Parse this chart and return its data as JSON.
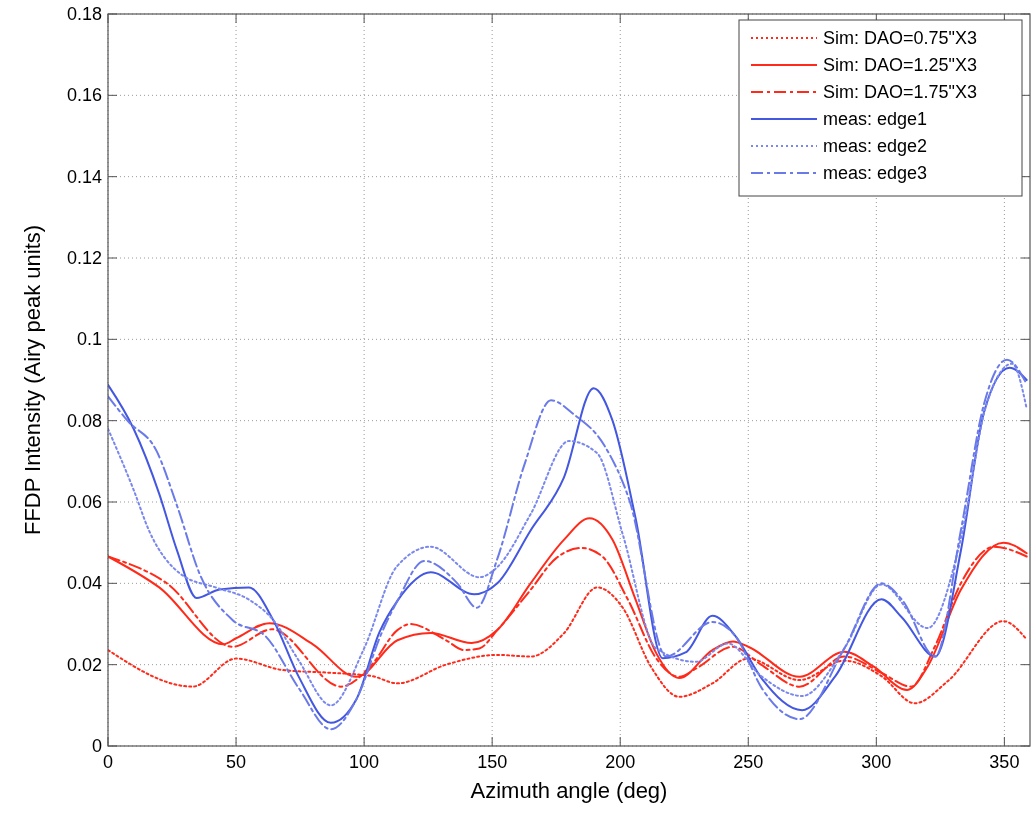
{
  "chart_data": {
    "type": "line",
    "xlabel": "Azimuth angle (deg)",
    "ylabel": "FFDP Intensity (Airy peak units)",
    "xlim": [
      0,
      360
    ],
    "xticks": [
      0,
      50,
      100,
      150,
      200,
      250,
      300,
      350
    ],
    "ylim": [
      0,
      0.18
    ],
    "yticks": [
      0,
      0.02,
      0.04,
      0.06,
      0.08,
      0.1,
      0.12,
      0.14,
      0.16,
      0.18
    ],
    "grid": true,
    "legend": "top right",
    "marker": "none",
    "series": [
      {
        "name": "Sim: DAO=0.75\"X3",
        "color": "#ff2a1a",
        "line_style": "dotted",
        "x": [
          0,
          33,
          50,
          68,
          87,
          103,
          113,
          132,
          152,
          165,
          178,
          191,
          201,
          212,
          223,
          236,
          250,
          270,
          287.5,
          302,
          315,
          328,
          349.6,
          358.7
        ],
        "values": [
          0.0236,
          0.0146,
          0.0215,
          0.0187,
          0.018,
          0.0172,
          0.0154,
          0.02,
          0.0224,
          0.022,
          0.0277,
          0.039,
          0.034,
          0.0195,
          0.0121,
          0.0154,
          0.0215,
          0.0162,
          0.021,
          0.0172,
          0.0105,
          0.016,
          0.0307,
          0.0262
        ]
      },
      {
        "name": "Sim: DAO=1.25\"X3",
        "color": "#ff2a1a",
        "line_style": "solid",
        "x": [
          0,
          20,
          45,
          50,
          63,
          80,
          97,
          113,
          126,
          142,
          152,
          165,
          178,
          188,
          197,
          206,
          214,
          223,
          236,
          244,
          250,
          270,
          287.5,
          299,
          312,
          320,
          333,
          349.6,
          358.7
        ],
        "values": [
          0.0466,
          0.039,
          0.025,
          0.0265,
          0.0302,
          0.025,
          0.017,
          0.026,
          0.0278,
          0.0253,
          0.0285,
          0.04,
          0.0507,
          0.056,
          0.0507,
          0.036,
          0.0229,
          0.0167,
          0.0236,
          0.0257,
          0.0244,
          0.017,
          0.0232,
          0.0195,
          0.0138,
          0.0195,
          0.0384,
          0.05,
          0.0474
        ]
      },
      {
        "name": "Sim: DAO=1.75\"X3",
        "color": "#ff2a1a",
        "line_style": "dashed",
        "x": [
          0,
          23,
          48.6,
          64,
          91,
          103,
          113,
          118,
          132,
          139,
          145,
          152,
          165,
          175,
          185,
          193,
          203,
          214,
          223,
          229.5,
          244,
          255,
          270,
          287.5,
          302,
          313.5,
          322.8,
          333,
          346,
          358.7
        ],
        "values": [
          0.0466,
          0.04,
          0.0244,
          0.0287,
          0.0146,
          0.02,
          0.0285,
          0.03,
          0.026,
          0.0236,
          0.024,
          0.0285,
          0.0384,
          0.0462,
          0.0487,
          0.0466,
          0.036,
          0.0216,
          0.017,
          0.019,
          0.0244,
          0.02,
          0.0146,
          0.022,
          0.018,
          0.0146,
          0.0244,
          0.04,
          0.049,
          0.0466
        ]
      },
      {
        "name": "meas: edge1",
        "color": "#4457e0",
        "line_style": "solid",
        "x": [
          0,
          10,
          20,
          27,
          34.6,
          43.6,
          55,
          64.5,
          74.5,
          87,
          97,
          106,
          113,
          126,
          143,
          152,
          165,
          178,
          189.6,
          197,
          206,
          216.6,
          225.5,
          236,
          245,
          255.5,
          271,
          284,
          302,
          310,
          323,
          333,
          342,
          352,
          358.7
        ],
        "values": [
          0.0888,
          0.078,
          0.062,
          0.048,
          0.0364,
          0.0385,
          0.039,
          0.031,
          0.017,
          0.0057,
          0.0115,
          0.028,
          0.0357,
          0.0427,
          0.0373,
          0.04,
          0.053,
          0.066,
          0.088,
          0.08,
          0.056,
          0.0216,
          0.023,
          0.032,
          0.027,
          0.0164,
          0.0088,
          0.0172,
          0.0361,
          0.0316,
          0.022,
          0.048,
          0.082,
          0.093,
          0.09
        ]
      },
      {
        "name": "meas: edge2",
        "color": "#7a88ee",
        "line_style": "dotted",
        "x": [
          0,
          10,
          16,
          29,
          42,
          55,
          64.5,
          74.5,
          87,
          100,
          112.6,
          126,
          145,
          152,
          165,
          180,
          191,
          201,
          214,
          229.5,
          242,
          255,
          271,
          287.5,
          302,
          320,
          333,
          343,
          353,
          358.7
        ],
        "values": [
          0.078,
          0.063,
          0.053,
          0.042,
          0.039,
          0.036,
          0.031,
          0.021,
          0.01,
          0.024,
          0.044,
          0.049,
          0.0415,
          0.044,
          0.057,
          0.075,
          0.072,
          0.052,
          0.024,
          0.0207,
          0.0252,
          0.0172,
          0.0123,
          0.024,
          0.0397,
          0.029,
          0.051,
          0.084,
          0.094,
          0.083
        ]
      },
      {
        "name": "meas: edge3",
        "color": "#6a7ae8",
        "line_style": "dashed",
        "x": [
          0,
          7.6,
          19,
          27,
          36,
          48.6,
          61.5,
          74.5,
          87,
          97,
          107,
          113,
          123.5,
          136.4,
          144,
          152,
          162.5,
          173,
          182,
          193.7,
          203.8,
          218,
          236,
          245,
          255.5,
          270,
          287.5,
          302,
          310,
          323,
          333,
          342,
          351,
          358.7
        ],
        "values": [
          0.086,
          0.08,
          0.0725,
          0.059,
          0.042,
          0.031,
          0.027,
          0.0142,
          0.0041,
          0.0115,
          0.028,
          0.0357,
          0.0455,
          0.04,
          0.034,
          0.046,
          0.069,
          0.085,
          0.0815,
          0.074,
          0.06,
          0.022,
          0.0305,
          0.027,
          0.014,
          0.0066,
          0.024,
          0.04,
          0.036,
          0.022,
          0.053,
          0.084,
          0.095,
          0.089
        ]
      }
    ]
  }
}
